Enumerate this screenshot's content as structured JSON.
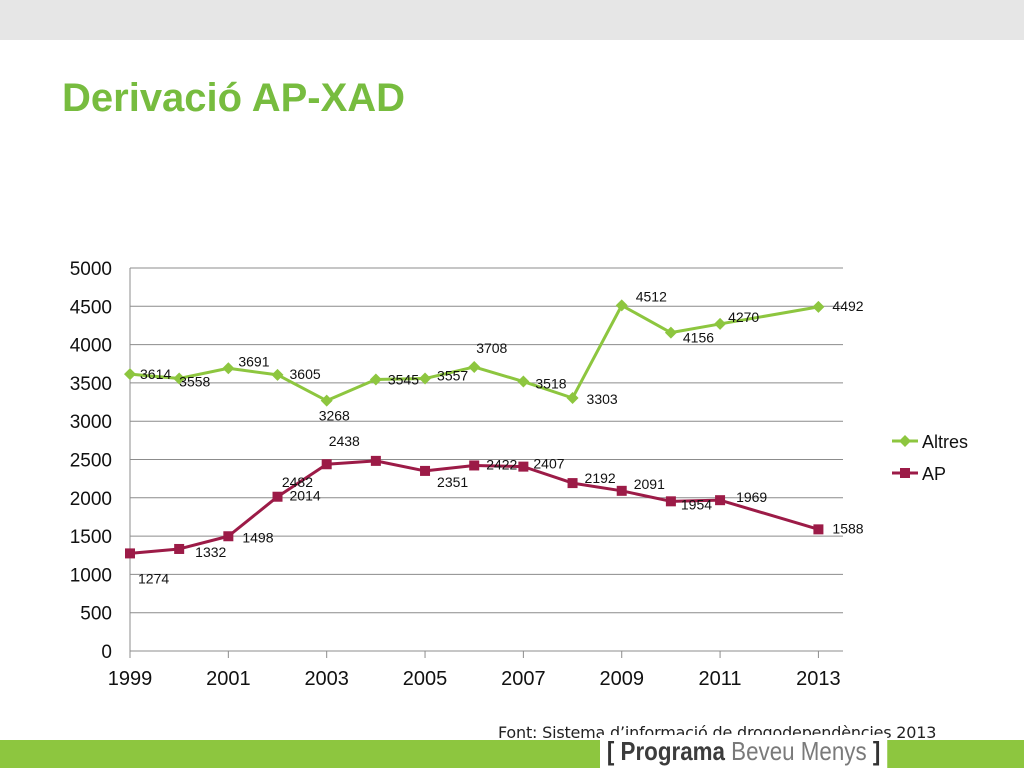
{
  "slide": {
    "title": "Derivació AP-XAD",
    "source": "Font: Sistema d’informació de drogodependències 2013",
    "brand": {
      "open_bracket": "[",
      "word1": "Programa",
      "word2": "Beveu Menys",
      "close_bracket": "]"
    }
  },
  "colors": {
    "title": "#77bc3f",
    "altres": "#8dc63f",
    "ap": "#9c1b47",
    "bottom_bar": "#8dc63f",
    "top_bar": "#e6e6e6"
  },
  "chart_data": {
    "type": "line",
    "x": [
      1999,
      2000,
      2001,
      2002,
      2003,
      2004,
      2005,
      2006,
      2007,
      2008,
      2009,
      2010,
      2011,
      2013
    ],
    "x_tick_labels": [
      "1999",
      "2001",
      "2003",
      "2005",
      "2007",
      "2009",
      "2011",
      "2013"
    ],
    "y_tick_labels": [
      "0",
      "500",
      "1000",
      "1500",
      "2000",
      "2500",
      "3000",
      "3500",
      "4000",
      "4500",
      "5000"
    ],
    "ylim": [
      0,
      5000
    ],
    "grid": true,
    "legend_position": "right",
    "series": [
      {
        "name": "Altres",
        "marker": "diamond",
        "values": [
          3614,
          3558,
          3691,
          3605,
          3268,
          3545,
          3557,
          3708,
          3518,
          3303,
          4512,
          4156,
          4270,
          4492
        ]
      },
      {
        "name": "AP",
        "marker": "square",
        "values": [
          1274,
          1332,
          1498,
          2014,
          2438,
          2482,
          2351,
          2422,
          2407,
          2192,
          2091,
          1954,
          1969,
          1588
        ]
      }
    ]
  }
}
